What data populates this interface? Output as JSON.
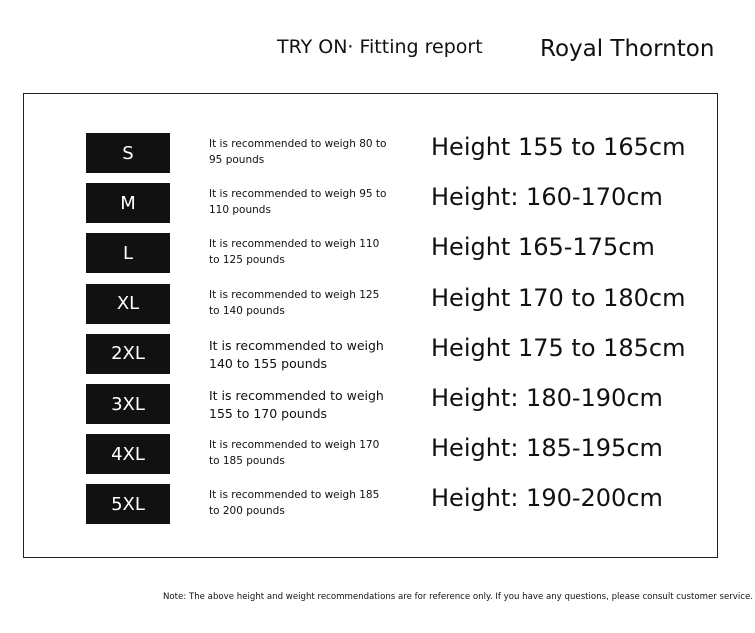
{
  "header": {
    "title": "TRY ON· Fitting report",
    "brand": "Royal Thornton"
  },
  "table": {
    "rows": [
      [
        "S",
        "It is recommended to weigh 80 to 95 pounds",
        "Height 155 to 165cm"
      ],
      [
        "M",
        "It is recommended to weigh 95 to 110 pounds",
        "Height: 160-170cm"
      ],
      [
        "L",
        "It is recommended to weigh 110 to 125 pounds",
        "Height 165-175cm"
      ],
      [
        "XL",
        "It is recommended to weigh 125 to 140 pounds",
        "Height 170 to 180cm"
      ],
      [
        "2XL",
        "It is recommended to weigh 140 to 155 pounds",
        "Height 175 to 185cm"
      ],
      [
        "3XL",
        "It is recommended to weigh 155 to 170 pounds",
        "Height: 180-190cm"
      ],
      [
        "4XL",
        "It is recommended to weigh 170 to 185 pounds",
        "Height: 185-195cm"
      ],
      [
        "5XL",
        "It is recommended to weigh 185 to 200 pounds",
        "Height: 190-200cm"
      ]
    ]
  },
  "note": "Note: The above height and weight recommendations are for reference only. If you have any questions, please consult customer service."
}
